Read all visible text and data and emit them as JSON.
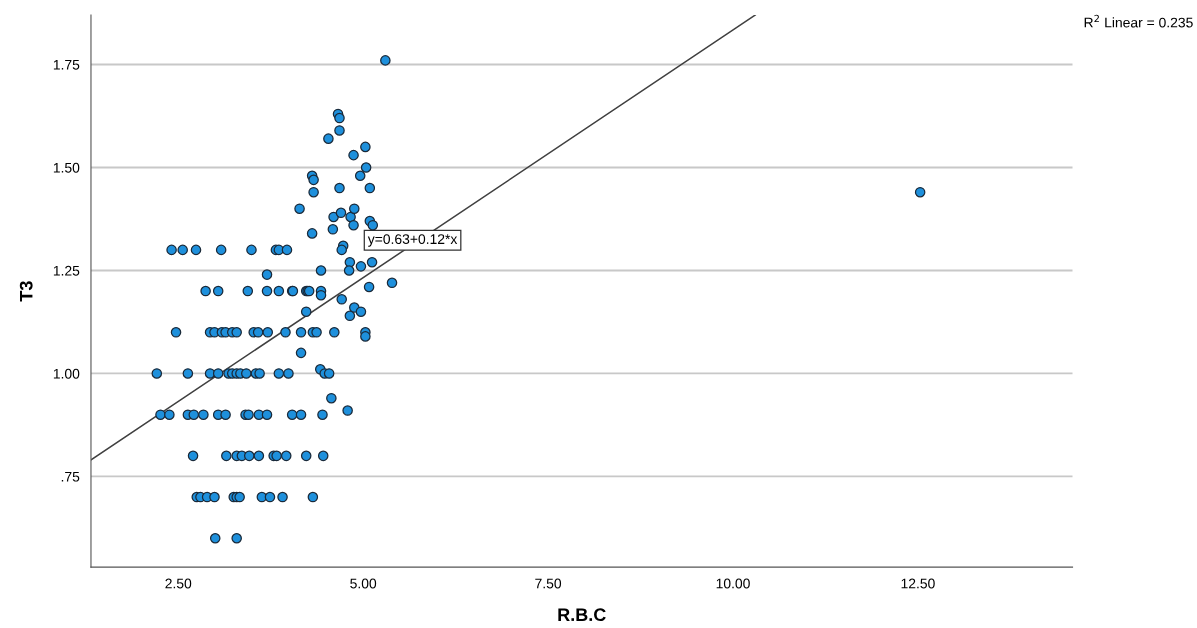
{
  "chart_data": {
    "type": "scatter",
    "xlabel": "R.B.C",
    "ylabel": "T3",
    "xlim": [
      1.32,
      14.59
    ],
    "ylim": [
      0.53,
      1.87
    ],
    "xticks": [
      {
        "value": 2.5,
        "label": "2.50"
      },
      {
        "value": 5,
        "label": "5.00"
      },
      {
        "value": 7.5,
        "label": "7.50"
      },
      {
        "value": 10,
        "label": "10.00"
      },
      {
        "value": 12.5,
        "label": "12.50"
      }
    ],
    "yticks": [
      {
        "value": 0.75,
        "label": ".75"
      },
      {
        "value": 1.0,
        "label": "1.00"
      },
      {
        "value": 1.25,
        "label": "1.25"
      },
      {
        "value": 1.5,
        "label": "1.50"
      },
      {
        "value": 1.75,
        "label": "1.75"
      }
    ],
    "grid": "y",
    "series": [
      {
        "marker": "circle",
        "color": "#1e90dc",
        "x": [
          2.41,
          2.56,
          2.74,
          3.08,
          3.49,
          3.82,
          3.86,
          3.97,
          3.7,
          2.87,
          3.04,
          3.44,
          3.7,
          3.86,
          4.04,
          4.23,
          4.23,
          2.47,
          2.93,
          2.99,
          3.09,
          3.14,
          3.23,
          3.29,
          3.52,
          3.58,
          3.71,
          3.95,
          4.16,
          4.16,
          2.21,
          2.63,
          2.93,
          3.04,
          3.18,
          3.23,
          3.29,
          3.34,
          3.42,
          3.55,
          3.6,
          3.86,
          3.99,
          2.26,
          2.38,
          2.63,
          2.71,
          2.84,
          3.04,
          3.14,
          3.41,
          3.45,
          3.59,
          3.7,
          4.04,
          4.16,
          2.7,
          3.15,
          3.29,
          3.36,
          3.46,
          3.59,
          3.79,
          3.83,
          3.96,
          4.23,
          2.75,
          2.8,
          2.89,
          2.99,
          3.25,
          3.29,
          3.33,
          3.63,
          3.74,
          3.91,
          3.0,
          3.29,
          5.3,
          4.66,
          4.68,
          4.68,
          4.53,
          5.03,
          4.87,
          5.04,
          4.96,
          4.31,
          4.33,
          4.33,
          4.68,
          5.09,
          4.14,
          4.6,
          4.7,
          4.83,
          4.88,
          4.87,
          5.09,
          5.13,
          4.31,
          4.59,
          4.73,
          4.71,
          4.82,
          4.81,
          4.97,
          5.12,
          4.43,
          5.08,
          5.39,
          4.05,
          4.25,
          4.27,
          4.43,
          4.71,
          4.88,
          4.82,
          4.97,
          4.43,
          4.32,
          4.37,
          4.61,
          5.03,
          5.03,
          4.42,
          4.48,
          4.54,
          4.57,
          4.45,
          4.79,
          4.46,
          4.32,
          12.53
        ],
        "values": [
          1.3,
          1.3,
          1.3,
          1.3,
          1.3,
          1.3,
          1.3,
          1.3,
          1.24,
          1.2,
          1.2,
          1.2,
          1.2,
          1.2,
          1.2,
          1.2,
          1.15,
          1.1,
          1.1,
          1.1,
          1.1,
          1.1,
          1.1,
          1.1,
          1.1,
          1.1,
          1.1,
          1.1,
          1.1,
          1.05,
          1.0,
          1.0,
          1.0,
          1.0,
          1.0,
          1.0,
          1.0,
          1.0,
          1.0,
          1.0,
          1.0,
          1.0,
          1.0,
          0.9,
          0.9,
          0.9,
          0.9,
          0.9,
          0.9,
          0.9,
          0.9,
          0.9,
          0.9,
          0.9,
          0.9,
          0.9,
          0.8,
          0.8,
          0.8,
          0.8,
          0.8,
          0.8,
          0.8,
          0.8,
          0.8,
          0.8,
          0.7,
          0.7,
          0.7,
          0.7,
          0.7,
          0.7,
          0.7,
          0.7,
          0.7,
          0.7,
          0.6,
          0.6,
          1.76,
          1.63,
          1.62,
          1.59,
          1.57,
          1.55,
          1.53,
          1.5,
          1.48,
          1.48,
          1.47,
          1.44,
          1.45,
          1.45,
          1.4,
          1.38,
          1.39,
          1.38,
          1.4,
          1.36,
          1.37,
          1.36,
          1.34,
          1.35,
          1.31,
          1.3,
          1.27,
          1.25,
          1.26,
          1.27,
          1.25,
          1.21,
          1.22,
          1.2,
          1.2,
          1.2,
          1.2,
          1.18,
          1.16,
          1.14,
          1.15,
          1.19,
          1.1,
          1.1,
          1.1,
          1.1,
          1.09,
          1.01,
          1.0,
          1.0,
          0.94,
          0.9,
          0.91,
          0.8,
          0.7,
          1.44
        ]
      },
      {
        "type": "line",
        "color": "#404040",
        "x": [
          1.32,
          10.3
        ],
        "values": [
          0.79,
          1.87
        ]
      }
    ],
    "annotations": [
      "y=0.63+0.12*x",
      "R$^{2}$ Linear = 0.235"
    ]
  }
}
